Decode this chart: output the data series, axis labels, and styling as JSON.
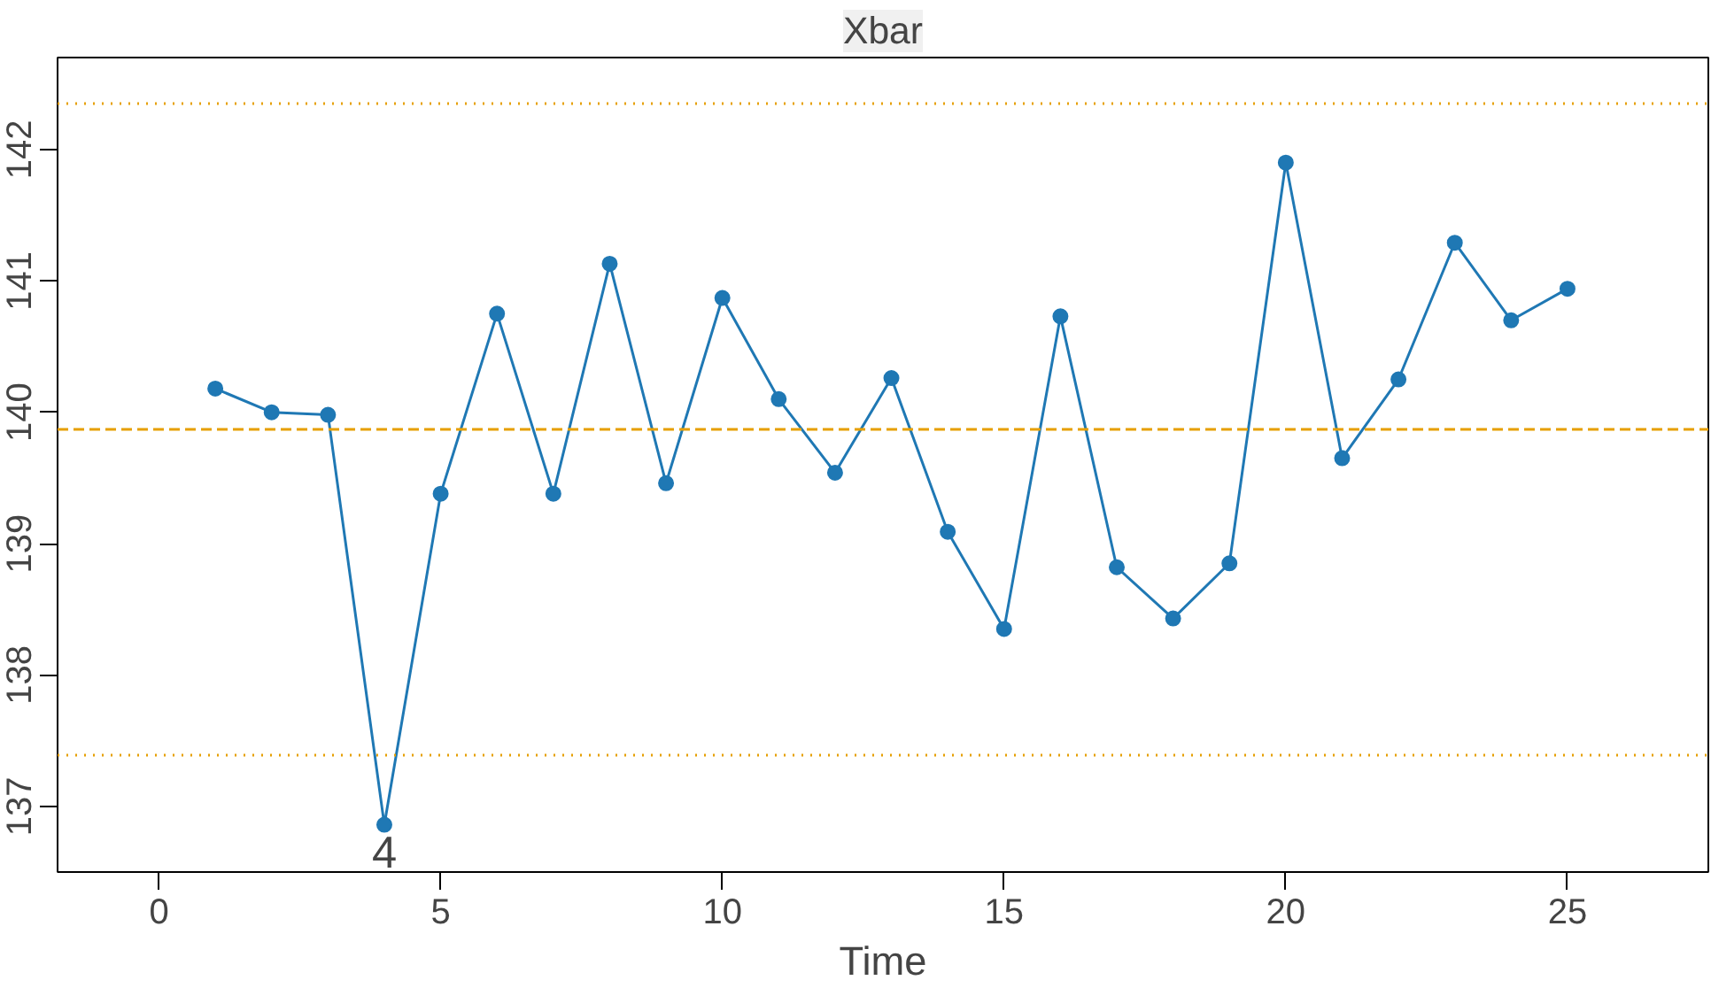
{
  "chart_data": {
    "type": "line",
    "title": "Xbar",
    "xlabel": "Time",
    "x": [
      1,
      2,
      3,
      4,
      5,
      6,
      7,
      8,
      9,
      10,
      11,
      12,
      13,
      14,
      15,
      16,
      17,
      18,
      19,
      20,
      21,
      22,
      23,
      24,
      25
    ],
    "series": [
      {
        "color": "#1f78b4",
        "values": [
          140.18,
          140.0,
          139.98,
          136.86,
          139.38,
          140.75,
          139.38,
          141.13,
          139.46,
          140.87,
          140.1,
          139.54,
          140.26,
          139.09,
          138.35,
          140.73,
          138.82,
          138.43,
          138.85,
          141.9,
          139.65,
          140.25,
          141.29,
          140.7,
          140.94
        ]
      }
    ],
    "marker": "circle",
    "line_style": "solid",
    "xlim": [
      -1.8,
      27.5
    ],
    "ylim": [
      136.5,
      142.7
    ],
    "xticks": [
      0,
      5,
      10,
      15,
      20,
      25
    ],
    "yticks": [
      137,
      138,
      139,
      140,
      141,
      142
    ],
    "ref_lines": [
      {
        "axis": "y",
        "value": 139.87,
        "label": null,
        "color": "#e69f00",
        "line_style": "dashed"
      },
      {
        "axis": "y",
        "value": 142.35,
        "label": null,
        "color": "#e69f00",
        "line_style": "dotted"
      },
      {
        "axis": "y",
        "value": 137.39,
        "label": null,
        "color": "#e69f00",
        "line_style": "dotted"
      }
    ],
    "annotations": [
      {
        "text": "4",
        "x": 4,
        "y": 136.86
      }
    ],
    "grid": false
  }
}
